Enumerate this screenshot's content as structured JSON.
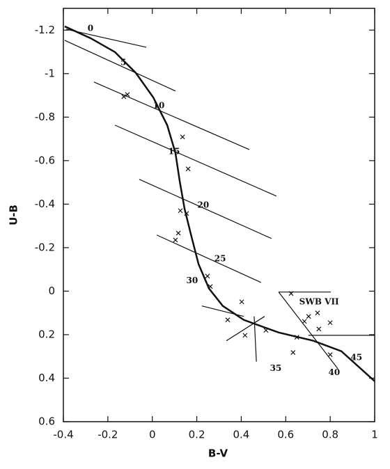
{
  "chart_data": {
    "type": "line",
    "x_label": "B-V",
    "y_label": "U-B",
    "xlim": [
      -0.4,
      1
    ],
    "ylim": [
      -1.3,
      0.6
    ],
    "y_inverted": true,
    "xticks": [
      -0.4,
      -0.2,
      0,
      0.2,
      0.4,
      0.6,
      0.8,
      1
    ],
    "yticks": [
      -1.2,
      -1,
      -0.8,
      -0.6,
      -0.4,
      -0.2,
      0,
      0.2,
      0.4,
      0.6
    ],
    "color": "#111111",
    "curve": {
      "x": [
        -0.394,
        -0.278,
        -0.168,
        -0.074,
        0.004,
        0.067,
        0.104,
        0.123,
        0.145,
        0.176,
        0.208,
        0.255,
        0.317,
        0.411,
        0.568,
        0.724,
        0.85,
        1.0
      ],
      "y": [
        -1.217,
        -1.163,
        -1.099,
        -1.003,
        -0.891,
        -0.763,
        -0.635,
        -0.507,
        -0.379,
        -0.251,
        -0.124,
        -0.012,
        0.068,
        0.132,
        0.19,
        0.228,
        0.276,
        0.414
      ]
    },
    "points": {
      "x": [
        -0.128,
        -0.112,
        0.136,
        0.161,
        0.126,
        0.154,
        0.117,
        0.104,
        0.248,
        0.261,
        0.339,
        0.402,
        0.417,
        0.511,
        0.633,
        0.624,
        0.684,
        0.703,
        0.743,
        0.8,
        0.749,
        0.65,
        0.8
      ],
      "y": [
        -0.894,
        -0.904,
        -0.709,
        -0.562,
        -0.37,
        -0.357,
        -0.267,
        -0.235,
        -0.069,
        -0.021,
        0.132,
        0.049,
        0.203,
        0.18,
        0.282,
        0.011,
        0.139,
        0.116,
        0.1,
        0.145,
        0.174,
        0.212,
        0.292
      ]
    },
    "segments": [
      [
        -0.387,
        -1.204,
        -0.027,
        -1.121
      ],
      [
        -0.394,
        -1.153,
        0.104,
        -0.92
      ],
      [
        -0.262,
        -0.961,
        0.436,
        -0.651
      ],
      [
        -0.168,
        -0.763,
        0.558,
        -0.437
      ],
      [
        -0.059,
        -0.514,
        0.536,
        -0.242
      ],
      [
        0.02,
        -0.258,
        0.489,
        -0.04
      ],
      [
        0.223,
        0.068,
        0.411,
        0.116
      ],
      [
        0.333,
        0.228,
        0.505,
        0.116
      ],
      [
        0.468,
        0.324,
        0.458,
        0.116
      ],
      [
        0.568,
        0.004,
        0.803,
        0.004
      ],
      [
        0.568,
        0.004,
        0.834,
        0.356
      ],
      [
        0.702,
        0.203,
        1.0,
        0.203
      ]
    ],
    "annotations": [
      {
        "text": "0",
        "x": -0.278,
        "y": -1.207
      },
      {
        "text": "5",
        "x": -0.13,
        "y": -1.051
      },
      {
        "text": "10",
        "x": 0.029,
        "y": -0.852
      },
      {
        "text": "15",
        "x": 0.098,
        "y": -0.641
      },
      {
        "text": "20",
        "x": 0.229,
        "y": -0.395
      },
      {
        "text": "25",
        "x": 0.305,
        "y": -0.149
      },
      {
        "text": "30",
        "x": 0.179,
        "y": -0.047
      },
      {
        "text": "35",
        "x": 0.555,
        "y": 0.356
      },
      {
        "text": "40",
        "x": 0.818,
        "y": 0.375
      },
      {
        "text": "45",
        "x": 0.918,
        "y": 0.305
      },
      {
        "text": "SWB VII",
        "x": 0.75,
        "y": 0.05
      }
    ]
  }
}
